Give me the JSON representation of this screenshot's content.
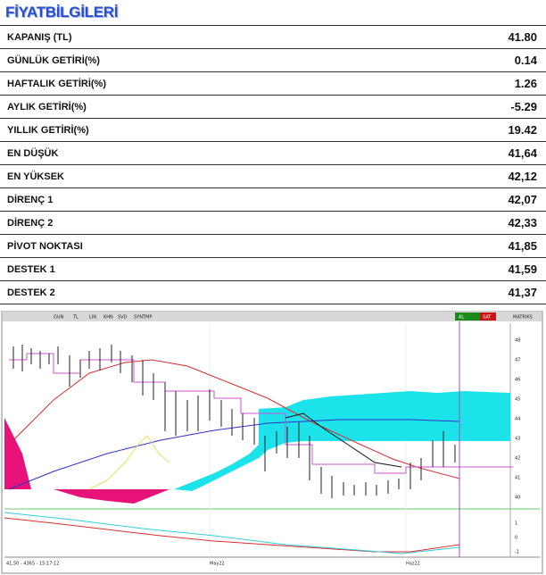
{
  "header": {
    "title": "FİYATBİLGİLERİ"
  },
  "table": {
    "rows": [
      [
        "KAPANIŞ (TL)",
        "41.80"
      ],
      [
        "GÜNLÜK GETİRİ(%)",
        "0.14"
      ],
      [
        "HAFTALIK GETİRİ(%)",
        "1.26"
      ],
      [
        "AYLIK GETİRİ(%)",
        "-5.29"
      ],
      [
        "YILLIK  GETİRİ(%)",
        "19.42"
      ],
      [
        "EN DÜŞÜK",
        "41,64"
      ],
      [
        "EN YÜKSEK",
        "42,12"
      ],
      [
        "DİRENÇ 1",
        "42,07"
      ],
      [
        "DİRENÇ 2",
        "42,33"
      ],
      [
        "PİVOT NOKTASI",
        "41,85"
      ],
      [
        "DESTEK 1",
        "41,59"
      ],
      [
        "DESTEK 2",
        "41,37"
      ]
    ]
  },
  "chart": {
    "toolbar": [
      "GUN",
      "TL",
      "LIN",
      "KHN",
      "SVD",
      "SYNTMP",
      "AL",
      "SAT",
      "MATRIKS"
    ],
    "price_axis": [
      "48",
      "47",
      "46",
      "45",
      "44",
      "43",
      "42",
      "41",
      "40"
    ],
    "indicator_axis": [
      "1",
      "0",
      "-1"
    ],
    "x_labels": [
      "May22",
      "Haz22"
    ],
    "status": "41,50 - 4365 - 15:17:12"
  }
}
